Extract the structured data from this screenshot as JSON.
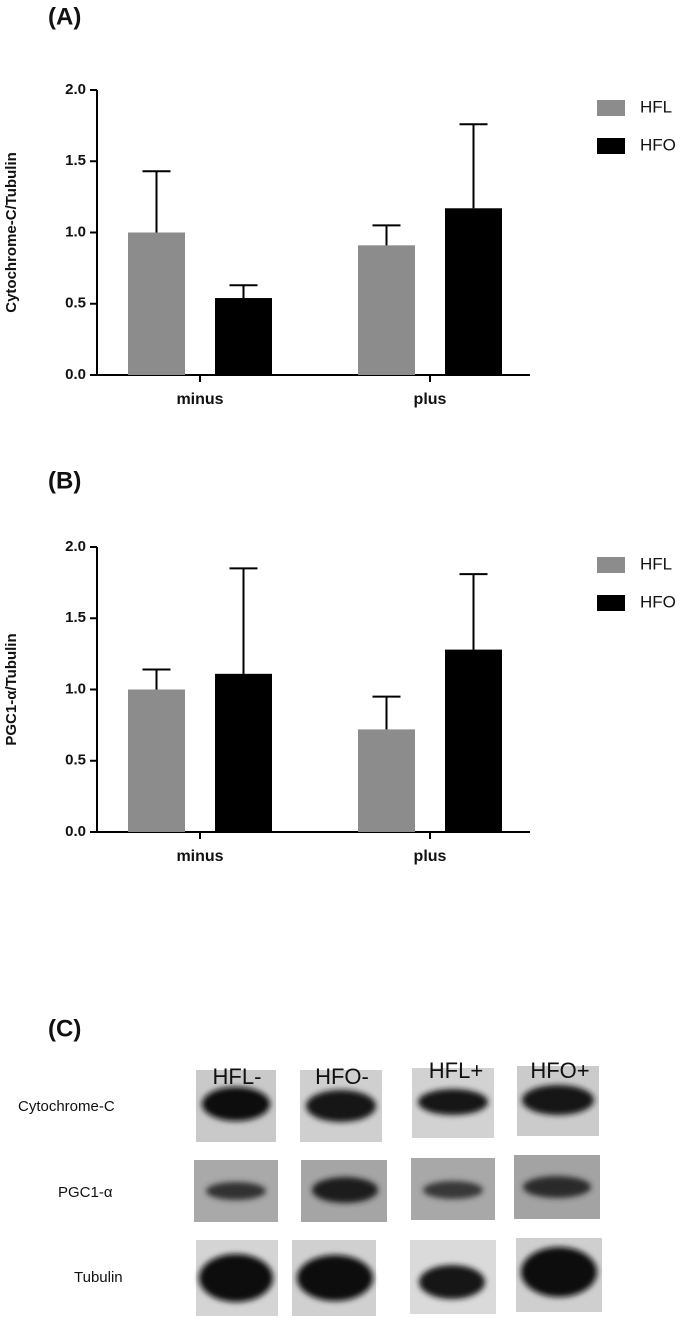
{
  "chart_data": [
    {
      "type": "bar",
      "panel_label": "(A)",
      "ylabel": "Cytochrome-C/Tubulin",
      "categories": [
        "minus",
        "plus"
      ],
      "series": [
        {
          "name": "HFL",
          "color": "#8c8c8c",
          "values": [
            1.0,
            0.91
          ],
          "errors": [
            0.43,
            0.14
          ]
        },
        {
          "name": "HFO",
          "color": "#000000",
          "values": [
            0.54,
            1.17
          ],
          "errors": [
            0.09,
            0.59
          ]
        }
      ],
      "ylim": [
        0,
        2
      ],
      "yticks": [
        {
          "value": 0,
          "label": "0.0"
        },
        {
          "value": 0.5,
          "label": "0.5"
        },
        {
          "value": 1,
          "label": "1.0"
        },
        {
          "value": 1.5,
          "label": "1.5"
        },
        {
          "value": 2,
          "label": "2.0"
        }
      ],
      "legend": "right"
    },
    {
      "type": "bar",
      "panel_label": "(B)",
      "ylabel": "PGC1-α/Tubulin",
      "categories": [
        "minus",
        "plus"
      ],
      "series": [
        {
          "name": "HFL",
          "color": "#8c8c8c",
          "values": [
            1.0,
            0.72
          ],
          "errors": [
            0.14,
            0.23
          ]
        },
        {
          "name": "HFO",
          "color": "#000000",
          "values": [
            1.11,
            1.28
          ],
          "errors": [
            0.74,
            0.53
          ]
        }
      ],
      "ylim": [
        0,
        2
      ],
      "yticks": [
        {
          "value": 0,
          "label": "0.0"
        },
        {
          "value": 0.5,
          "label": "0.5"
        },
        {
          "value": 1,
          "label": "1.0"
        },
        {
          "value": 1.5,
          "label": "1.5"
        },
        {
          "value": 2,
          "label": "2.0"
        }
      ],
      "legend": "right"
    }
  ],
  "blot": {
    "panel_label": "(C)",
    "columns": [
      "HFL-",
      "HFO-",
      "HFL+",
      "HFO+"
    ],
    "rows": [
      "Cytochrome-C",
      "PGC1-α",
      "Tubulin"
    ]
  }
}
